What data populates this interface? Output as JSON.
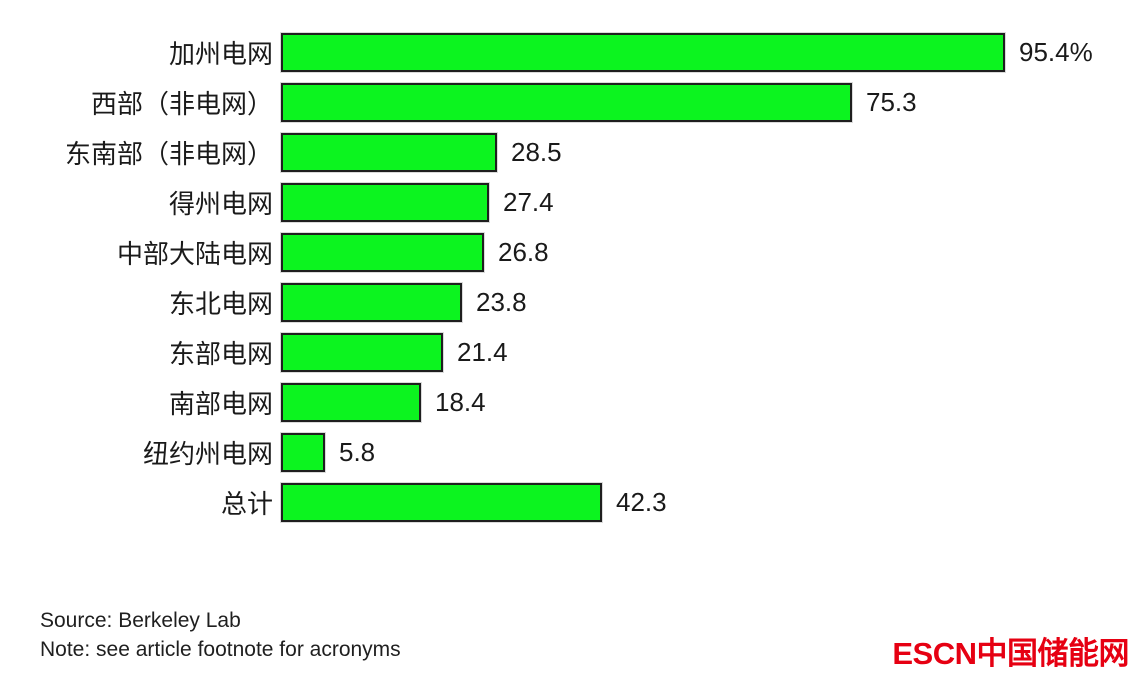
{
  "chart_data": {
    "type": "bar",
    "orientation": "horizontal",
    "categories": [
      "加州电网",
      "西部（非电网）",
      "东南部（非电网）",
      "得州电网",
      "中部大陆电网",
      "东北电网",
      "东部电网",
      "南部电网",
      "纽约州电网",
      "总计"
    ],
    "values": [
      95.4,
      75.3,
      28.5,
      27.4,
      26.8,
      23.8,
      21.4,
      18.4,
      5.8,
      42.3
    ],
    "value_labels": [
      "95.4%",
      "75.3",
      "28.5",
      "27.4",
      "26.8",
      "23.8",
      "21.4",
      "18.4",
      "5.8",
      "42.3"
    ],
    "unit": "%",
    "xlim": [
      0,
      100
    ],
    "grid": false,
    "legend": false,
    "bar_color": "#0cf41f",
    "bar_border_color": "#1e1e1e",
    "label_color": "#1a1a1a"
  },
  "footer": {
    "source": "Source: Berkeley Lab",
    "note": "Note: see article footnote for acronyms"
  },
  "logo": {
    "text": "ESCN中国储能网",
    "color": "#e60012"
  }
}
